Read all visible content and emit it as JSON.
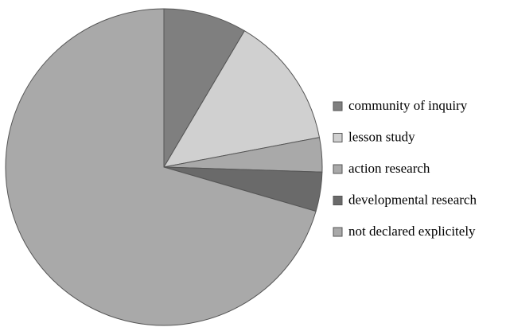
{
  "chart_data": {
    "type": "pie",
    "title": "",
    "legend_position": "right",
    "slices": [
      {
        "label": "community of inquiry",
        "value": 8.5,
        "color": "#7f7f7f"
      },
      {
        "label": "lesson study",
        "value": 13.5,
        "color": "#d0d0d0"
      },
      {
        "label": "action research",
        "value": 3.5,
        "color": "#a9a9a9"
      },
      {
        "label": "developmental research",
        "value": 4.0,
        "color": "#6a6a6a"
      },
      {
        "label": "not declared explicitely",
        "value": 70.5,
        "color": "#a9a9a9"
      }
    ],
    "stroke_color": "#555555"
  }
}
